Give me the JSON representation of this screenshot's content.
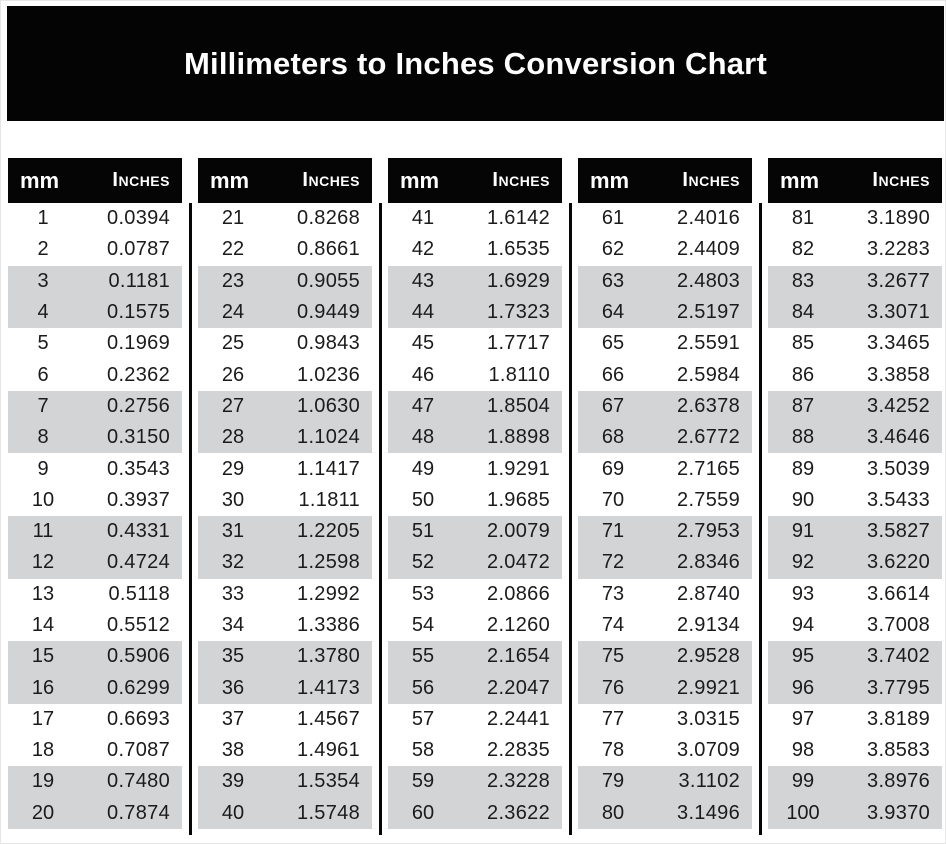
{
  "title": "Millimeters to Inches Conversion Chart",
  "column_headers": {
    "mm": "mm",
    "inches": "Inches"
  },
  "colors": {
    "header_bg": "#000000",
    "header_text": "#ffffff",
    "stripe": "#d3d4d5",
    "row_text": "#1b1b1b",
    "page_bg": "#ffffff"
  },
  "chart_data": {
    "type": "table",
    "title": "Millimeters to Inches Conversion Chart",
    "columns": [
      "mm",
      "Inches"
    ],
    "groups": [
      {
        "rows": [
          {
            "mm": "1",
            "in": "0.0394"
          },
          {
            "mm": "2",
            "in": "0.0787"
          },
          {
            "mm": "3",
            "in": "0.1181"
          },
          {
            "mm": "4",
            "in": "0.1575"
          },
          {
            "mm": "5",
            "in": "0.1969"
          },
          {
            "mm": "6",
            "in": "0.2362"
          },
          {
            "mm": "7",
            "in": "0.2756"
          },
          {
            "mm": "8",
            "in": "0.3150"
          },
          {
            "mm": "9",
            "in": "0.3543"
          },
          {
            "mm": "10",
            "in": "0.3937"
          },
          {
            "mm": "11",
            "in": "0.4331"
          },
          {
            "mm": "12",
            "in": "0.4724"
          },
          {
            "mm": "13",
            "in": "0.5118"
          },
          {
            "mm": "14",
            "in": "0.5512"
          },
          {
            "mm": "15",
            "in": "0.5906"
          },
          {
            "mm": "16",
            "in": "0.6299"
          },
          {
            "mm": "17",
            "in": "0.6693"
          },
          {
            "mm": "18",
            "in": "0.7087"
          },
          {
            "mm": "19",
            "in": "0.7480"
          },
          {
            "mm": "20",
            "in": "0.7874"
          }
        ]
      },
      {
        "rows": [
          {
            "mm": "21",
            "in": "0.8268"
          },
          {
            "mm": "22",
            "in": "0.8661"
          },
          {
            "mm": "23",
            "in": "0.9055"
          },
          {
            "mm": "24",
            "in": "0.9449"
          },
          {
            "mm": "25",
            "in": "0.9843"
          },
          {
            "mm": "26",
            "in": "1.0236"
          },
          {
            "mm": "27",
            "in": "1.0630"
          },
          {
            "mm": "28",
            "in": "1.1024"
          },
          {
            "mm": "29",
            "in": "1.1417"
          },
          {
            "mm": "30",
            "in": "1.1811"
          },
          {
            "mm": "31",
            "in": "1.2205"
          },
          {
            "mm": "32",
            "in": "1.2598"
          },
          {
            "mm": "33",
            "in": "1.2992"
          },
          {
            "mm": "34",
            "in": "1.3386"
          },
          {
            "mm": "35",
            "in": "1.3780"
          },
          {
            "mm": "36",
            "in": "1.4173"
          },
          {
            "mm": "37",
            "in": "1.4567"
          },
          {
            "mm": "38",
            "in": "1.4961"
          },
          {
            "mm": "39",
            "in": "1.5354"
          },
          {
            "mm": "40",
            "in": "1.5748"
          }
        ]
      },
      {
        "rows": [
          {
            "mm": "41",
            "in": "1.6142"
          },
          {
            "mm": "42",
            "in": "1.6535"
          },
          {
            "mm": "43",
            "in": "1.6929"
          },
          {
            "mm": "44",
            "in": "1.7323"
          },
          {
            "mm": "45",
            "in": "1.7717"
          },
          {
            "mm": "46",
            "in": "1.8110"
          },
          {
            "mm": "47",
            "in": "1.8504"
          },
          {
            "mm": "48",
            "in": "1.8898"
          },
          {
            "mm": "49",
            "in": "1.9291"
          },
          {
            "mm": "50",
            "in": "1.9685"
          },
          {
            "mm": "51",
            "in": "2.0079"
          },
          {
            "mm": "52",
            "in": "2.0472"
          },
          {
            "mm": "53",
            "in": "2.0866"
          },
          {
            "mm": "54",
            "in": "2.1260"
          },
          {
            "mm": "55",
            "in": "2.1654"
          },
          {
            "mm": "56",
            "in": "2.2047"
          },
          {
            "mm": "57",
            "in": "2.2441"
          },
          {
            "mm": "58",
            "in": "2.2835"
          },
          {
            "mm": "59",
            "in": "2.3228"
          },
          {
            "mm": "60",
            "in": "2.3622"
          }
        ]
      },
      {
        "rows": [
          {
            "mm": "61",
            "in": "2.4016"
          },
          {
            "mm": "62",
            "in": "2.4409"
          },
          {
            "mm": "63",
            "in": "2.4803"
          },
          {
            "mm": "64",
            "in": "2.5197"
          },
          {
            "mm": "65",
            "in": "2.5591"
          },
          {
            "mm": "66",
            "in": "2.5984"
          },
          {
            "mm": "67",
            "in": "2.6378"
          },
          {
            "mm": "68",
            "in": "2.6772"
          },
          {
            "mm": "69",
            "in": "2.7165"
          },
          {
            "mm": "70",
            "in": "2.7559"
          },
          {
            "mm": "71",
            "in": "2.7953"
          },
          {
            "mm": "72",
            "in": "2.8346"
          },
          {
            "mm": "73",
            "in": "2.8740"
          },
          {
            "mm": "74",
            "in": "2.9134"
          },
          {
            "mm": "75",
            "in": "2.9528"
          },
          {
            "mm": "76",
            "in": "2.9921"
          },
          {
            "mm": "77",
            "in": "3.0315"
          },
          {
            "mm": "78",
            "in": "3.0709"
          },
          {
            "mm": "79",
            "in": "3.1102"
          },
          {
            "mm": "80",
            "in": "3.1496"
          }
        ]
      },
      {
        "rows": [
          {
            "mm": "81",
            "in": "3.1890"
          },
          {
            "mm": "82",
            "in": "3.2283"
          },
          {
            "mm": "83",
            "in": "3.2677"
          },
          {
            "mm": "84",
            "in": "3.3071"
          },
          {
            "mm": "85",
            "in": "3.3465"
          },
          {
            "mm": "86",
            "in": "3.3858"
          },
          {
            "mm": "87",
            "in": "3.4252"
          },
          {
            "mm": "88",
            "in": "3.4646"
          },
          {
            "mm": "89",
            "in": "3.5039"
          },
          {
            "mm": "90",
            "in": "3.5433"
          },
          {
            "mm": "91",
            "in": "3.5827"
          },
          {
            "mm": "92",
            "in": "3.6220"
          },
          {
            "mm": "93",
            "in": "3.6614"
          },
          {
            "mm": "94",
            "in": "3.7008"
          },
          {
            "mm": "95",
            "in": "3.7402"
          },
          {
            "mm": "96",
            "in": "3.7795"
          },
          {
            "mm": "97",
            "in": "3.8189"
          },
          {
            "mm": "98",
            "in": "3.8583"
          },
          {
            "mm": "99",
            "in": "3.8976"
          },
          {
            "mm": "100",
            "in": "3.9370"
          }
        ]
      }
    ]
  }
}
